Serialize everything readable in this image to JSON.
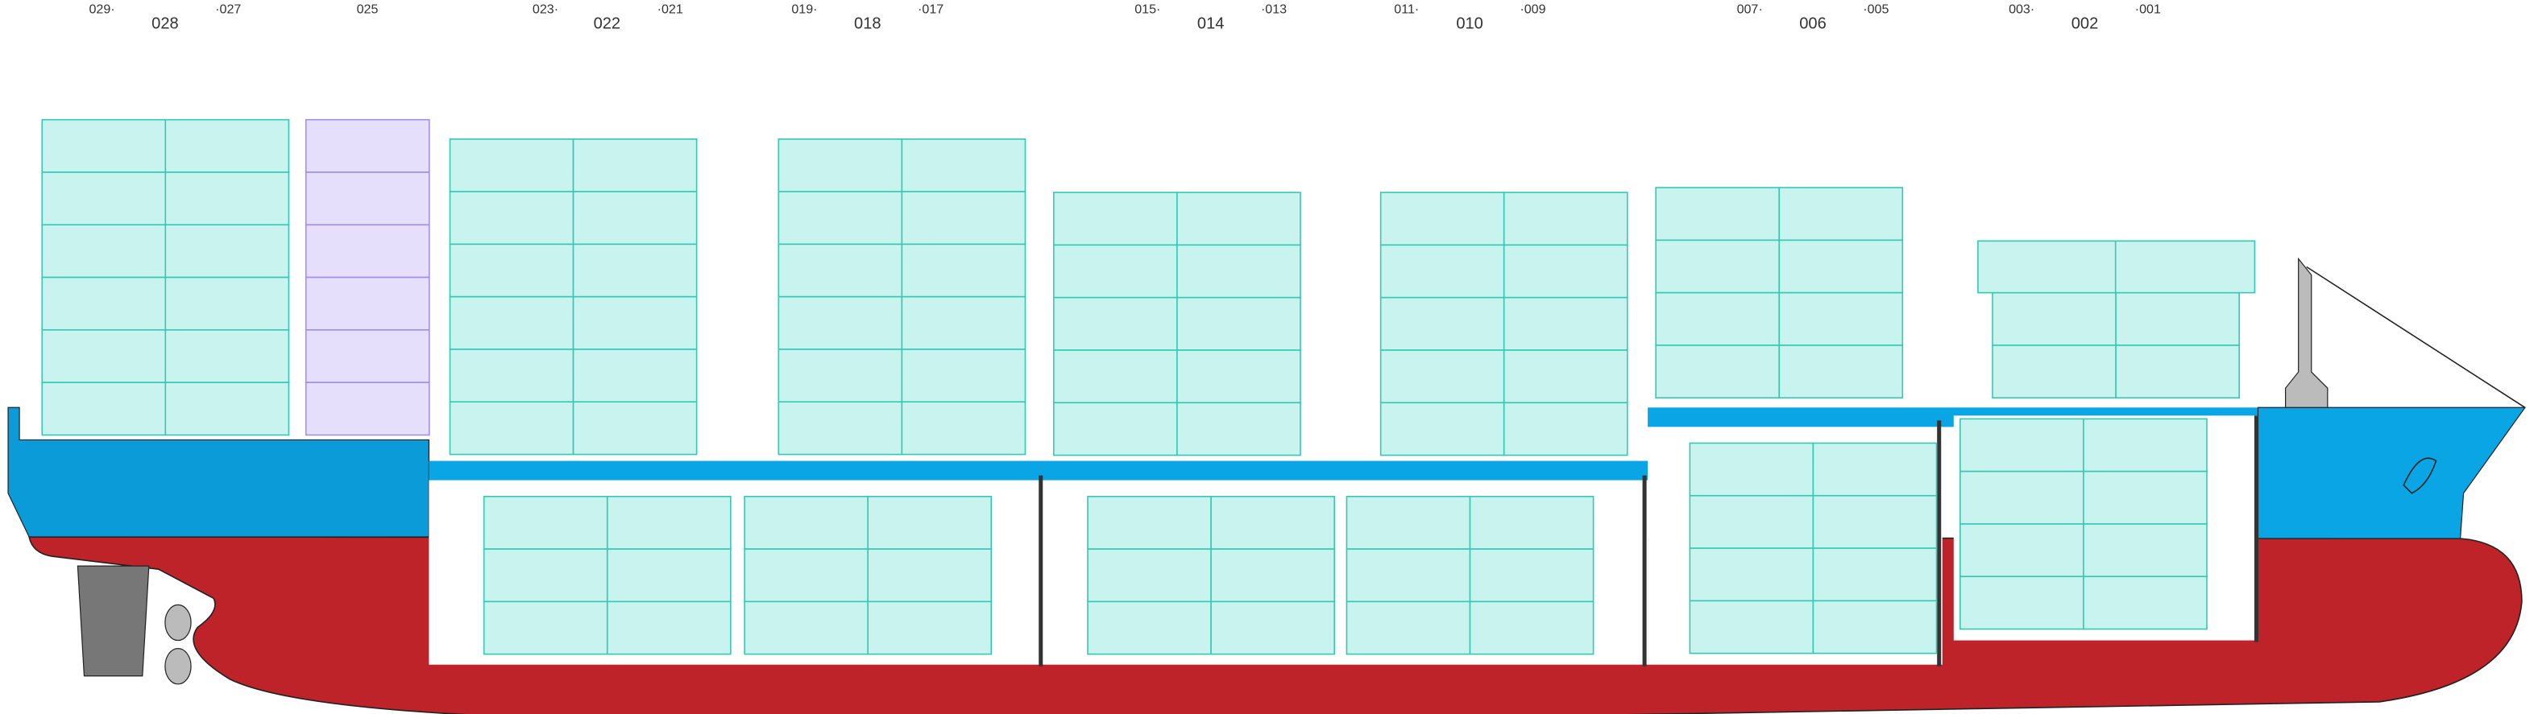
{
  "bay_labels": [
    "029·",
    "028",
    "·027",
    "025",
    "023·",
    "022",
    "·021",
    "019·",
    "018",
    "·017",
    "015·",
    "014",
    "·013",
    "011·",
    "010",
    "·009",
    "007·",
    "006",
    "·005",
    "003·",
    "002",
    "·001"
  ]
}
